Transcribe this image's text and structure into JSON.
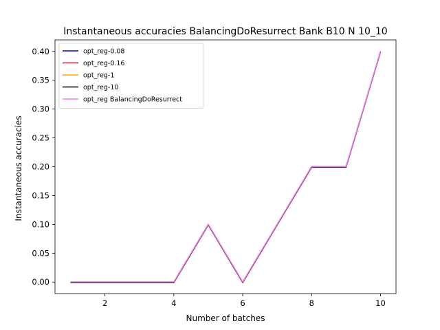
{
  "chart_data": {
    "type": "line",
    "title": "Instantaneous accuracies BalancingDoResurrect Bank B10 N 10_10",
    "xlabel": "Number of batches",
    "ylabel": "Instantaneous accuracies",
    "xlim": [
      0.55,
      10.45
    ],
    "ylim": [
      -0.02,
      0.42
    ],
    "xticks": [
      2,
      4,
      6,
      8,
      10
    ],
    "yticks": [
      0.0,
      0.05,
      0.1,
      0.15,
      0.2,
      0.25,
      0.3,
      0.35,
      0.4
    ],
    "ytick_labels": [
      "0.00",
      "0.05",
      "0.10",
      "0.15",
      "0.20",
      "0.25",
      "0.30",
      "0.35",
      "0.40"
    ],
    "grid": false,
    "legend_position": "top-left",
    "x": [
      1,
      2,
      3,
      4,
      5,
      6,
      7,
      8,
      9,
      10
    ],
    "series": [
      {
        "name": "opt_reg-0.08",
        "color": "#0000cc",
        "values": [
          0,
          0,
          0,
          0,
          0.1,
          0,
          0.1,
          0.2,
          0.2,
          0.4
        ]
      },
      {
        "name": "opt_reg-0.16",
        "color": "#ff0000",
        "values": [
          0,
          0,
          0,
          0,
          0.1,
          0,
          0.1,
          0.2,
          0.2,
          0.4
        ]
      },
      {
        "name": "opt_reg-1",
        "color": "#ffa500",
        "values": [
          0,
          0,
          0,
          0,
          0.1,
          0,
          0.1,
          0.2,
          0.2,
          0.4
        ]
      },
      {
        "name": "opt_reg-10",
        "color": "#000000",
        "values": [
          0,
          0,
          0,
          0,
          0.1,
          0,
          0.1,
          0.2,
          0.2,
          0.4
        ]
      },
      {
        "name": "opt_reg BalancingDoResurrect",
        "color": "#ee82ee",
        "values": [
          0,
          0,
          0,
          0,
          0.1,
          0,
          0.1,
          0.2,
          0.2,
          0.4
        ]
      }
    ]
  }
}
